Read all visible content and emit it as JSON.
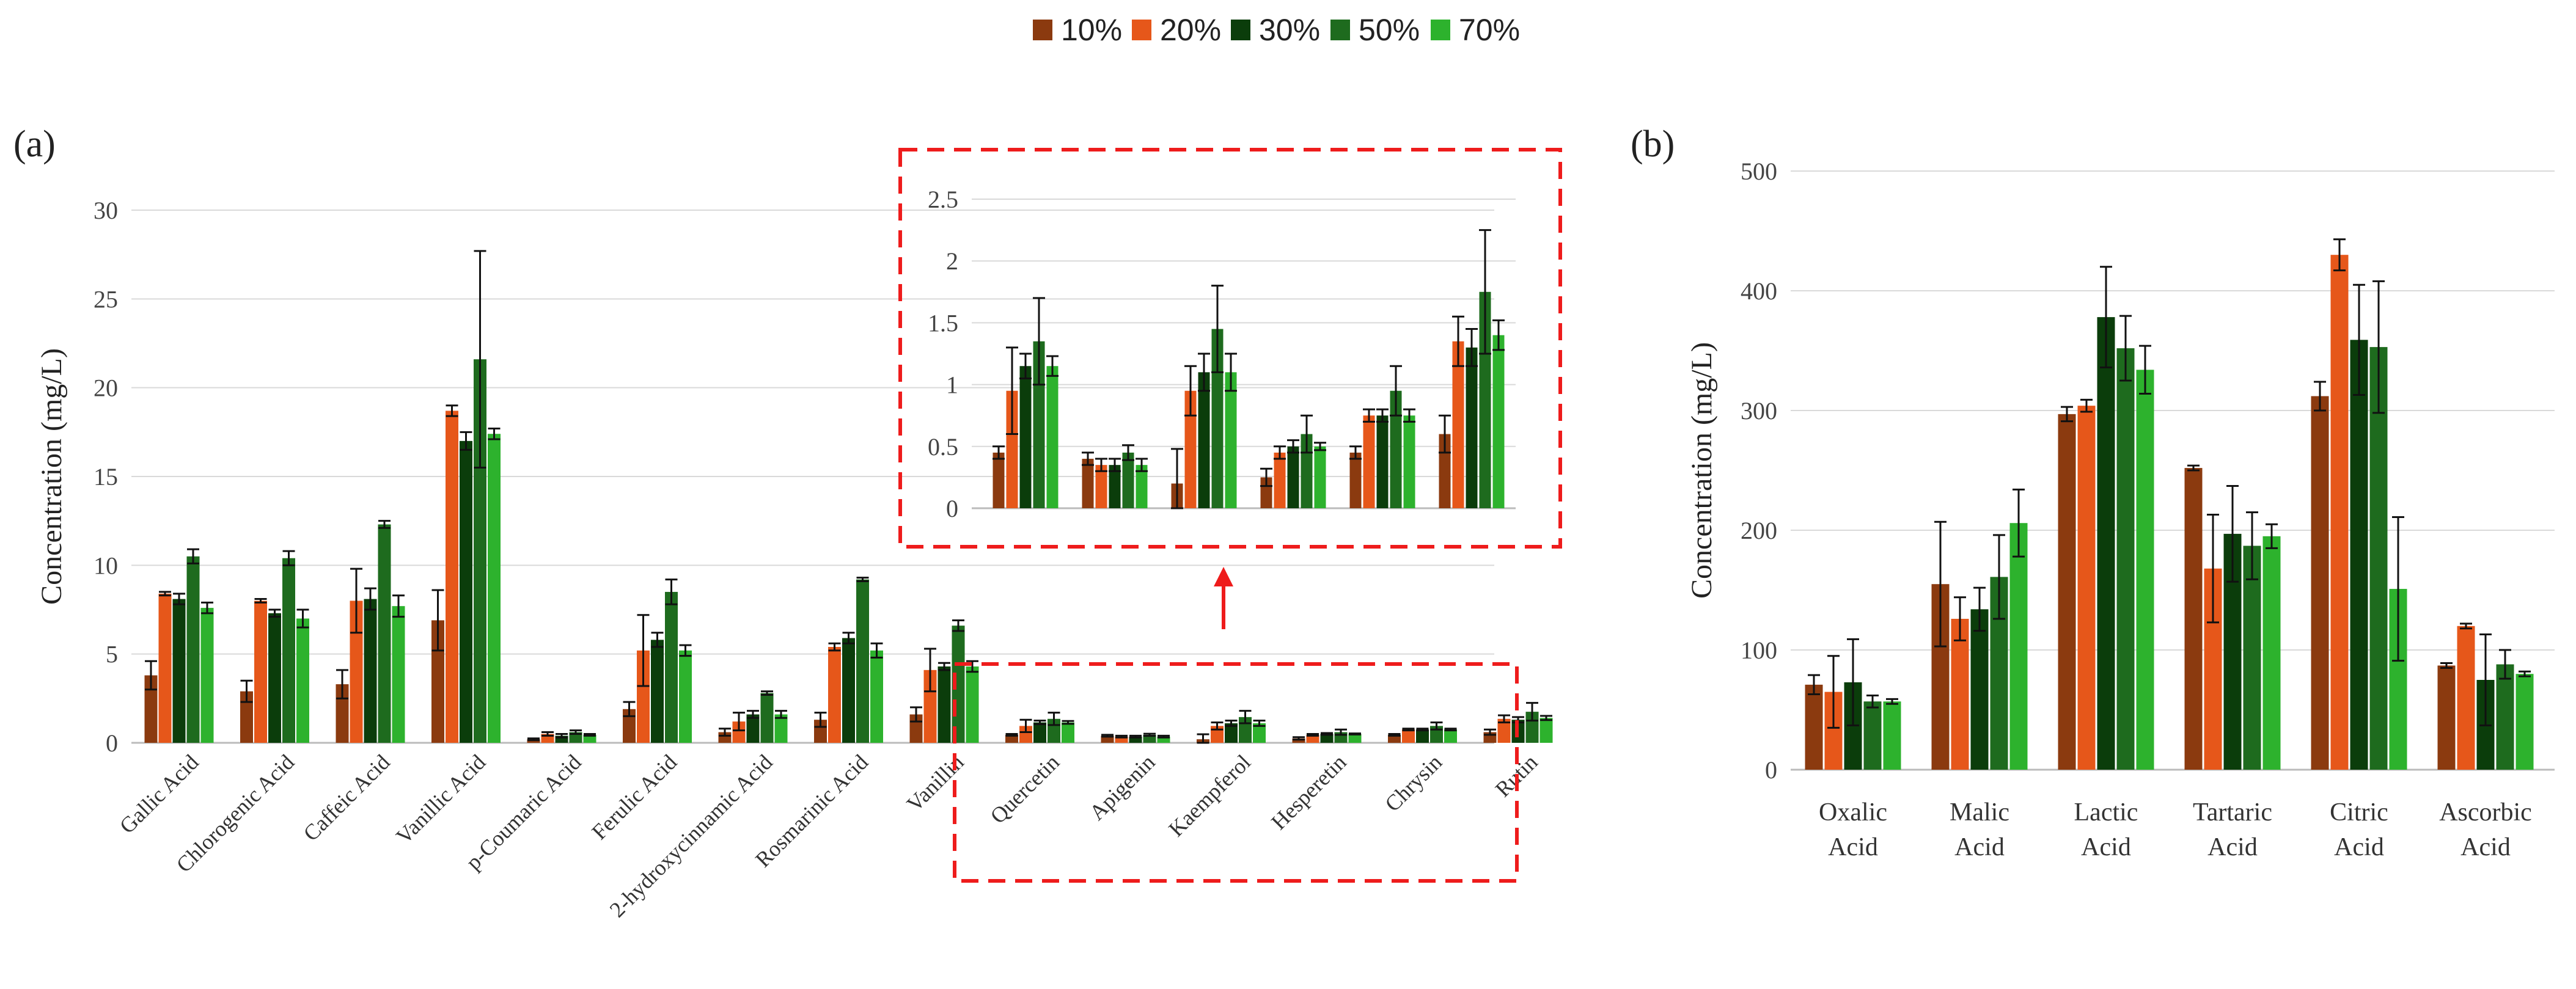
{
  "legend": [
    {
      "label": "10%",
      "color": "#8B3A0F"
    },
    {
      "label": "20%",
      "color": "#E6571A"
    },
    {
      "label": "30%",
      "color": "#0B3D0B"
    },
    {
      "label": "50%",
      "color": "#1E6B1E"
    },
    {
      "label": "70%",
      "color": "#2DB22D"
    }
  ],
  "chart_data": [
    {
      "panel": "(a)",
      "type": "bar",
      "ylabel": "Concentration (mg/L)",
      "ylim": [
        0,
        30
      ],
      "yticks": [
        "0",
        "5",
        "10",
        "15",
        "20",
        "25",
        "30"
      ],
      "categories": [
        "Gallic Acid",
        "Chlorogenic Acid",
        "Caffeic Acid",
        "Vanillic Acid",
        "p-Coumaric Acid",
        "Ferulic Acid",
        "2-hydroxycinnamic Acid",
        "Rosmarinic Acid",
        "Vanillin",
        "Quercetin",
        "Apigenin",
        "Kaempferol",
        "Hesperetin",
        "Chrysin",
        "Rutin"
      ],
      "series": [
        {
          "name": "10%",
          "values": [
            3.8,
            2.9,
            3.3,
            6.9,
            0.2,
            1.9,
            0.6,
            1.3,
            1.6,
            0.45,
            0.4,
            0.2,
            0.25,
            0.45,
            0.6
          ],
          "errors": [
            0.8,
            0.6,
            0.8,
            1.7,
            0.05,
            0.4,
            0.2,
            0.4,
            0.4,
            0.05,
            0.05,
            0.28,
            0.07,
            0.05,
            0.15
          ]
        },
        {
          "name": "20%",
          "values": [
            8.4,
            8.0,
            8.0,
            18.7,
            0.5,
            5.2,
            1.2,
            5.4,
            4.1,
            0.95,
            0.35,
            0.95,
            0.45,
            0.75,
            1.35
          ],
          "errors": [
            0.1,
            0.1,
            1.8,
            0.3,
            0.1,
            2.0,
            0.5,
            0.2,
            1.2,
            0.35,
            0.05,
            0.2,
            0.05,
            0.05,
            0.2
          ]
        },
        {
          "name": "30%",
          "values": [
            8.1,
            7.3,
            8.1,
            17.0,
            0.4,
            5.8,
            1.6,
            5.9,
            4.3,
            1.15,
            0.35,
            1.1,
            0.5,
            0.75,
            1.3
          ],
          "errors": [
            0.3,
            0.2,
            0.6,
            0.5,
            0.1,
            0.4,
            0.2,
            0.3,
            0.2,
            0.1,
            0.05,
            0.15,
            0.05,
            0.05,
            0.15
          ]
        },
        {
          "name": "50%",
          "values": [
            10.5,
            10.4,
            12.3,
            21.6,
            0.6,
            8.5,
            2.8,
            9.2,
            6.6,
            1.35,
            0.45,
            1.45,
            0.6,
            0.95,
            1.75
          ],
          "errors": [
            0.4,
            0.4,
            0.2,
            6.1,
            0.1,
            0.7,
            0.1,
            0.1,
            0.3,
            0.35,
            0.06,
            0.35,
            0.15,
            0.2,
            0.5
          ]
        },
        {
          "name": "70%",
          "values": [
            7.6,
            7.0,
            7.7,
            17.4,
            0.45,
            5.2,
            1.6,
            5.2,
            4.3,
            1.15,
            0.35,
            1.1,
            0.5,
            0.75,
            1.4
          ],
          "errors": [
            0.3,
            0.5,
            0.6,
            0.3,
            0.05,
            0.3,
            0.2,
            0.4,
            0.3,
            0.08,
            0.05,
            0.15,
            0.03,
            0.05,
            0.12
          ]
        }
      ]
    },
    {
      "panel": "inset",
      "type": "bar",
      "ylim": [
        0,
        2.5
      ],
      "yticks": [
        "0",
        "0.5",
        "1",
        "1.5",
        "2",
        "2.5"
      ],
      "category_range": [
        9,
        14
      ]
    },
    {
      "panel": "(b)",
      "type": "bar",
      "ylabel": "Concentration (mg/L)",
      "ylim": [
        0,
        500
      ],
      "yticks": [
        "0",
        "100",
        "200",
        "300",
        "400",
        "500"
      ],
      "categories": [
        [
          "Oxalic",
          "Acid"
        ],
        [
          "Malic",
          "Acid"
        ],
        [
          "Lactic",
          "Acid"
        ],
        [
          "Tartaric",
          "Acid"
        ],
        [
          "Citric",
          "Acid"
        ],
        [
          "Ascorbic",
          "Acid"
        ]
      ],
      "series": [
        {
          "name": "10%",
          "values": [
            71,
            155,
            297,
            252,
            312,
            87
          ],
          "errors": [
            8,
            52,
            6,
            2,
            12,
            2
          ]
        },
        {
          "name": "20%",
          "values": [
            65,
            126,
            304,
            168,
            430,
            120
          ],
          "errors": [
            30,
            18,
            5,
            45,
            13,
            2
          ]
        },
        {
          "name": "30%",
          "values": [
            73,
            134,
            378,
            197,
            359,
            75
          ],
          "errors": [
            36,
            18,
            42,
            40,
            46,
            38
          ]
        },
        {
          "name": "50%",
          "values": [
            57,
            161,
            352,
            187,
            353,
            88
          ],
          "errors": [
            5,
            35,
            27,
            28,
            55,
            12
          ]
        },
        {
          "name": "70%",
          "values": [
            57,
            206,
            334,
            195,
            151,
            80
          ],
          "errors": [
            2,
            28,
            20,
            10,
            60,
            2
          ]
        }
      ]
    }
  ]
}
